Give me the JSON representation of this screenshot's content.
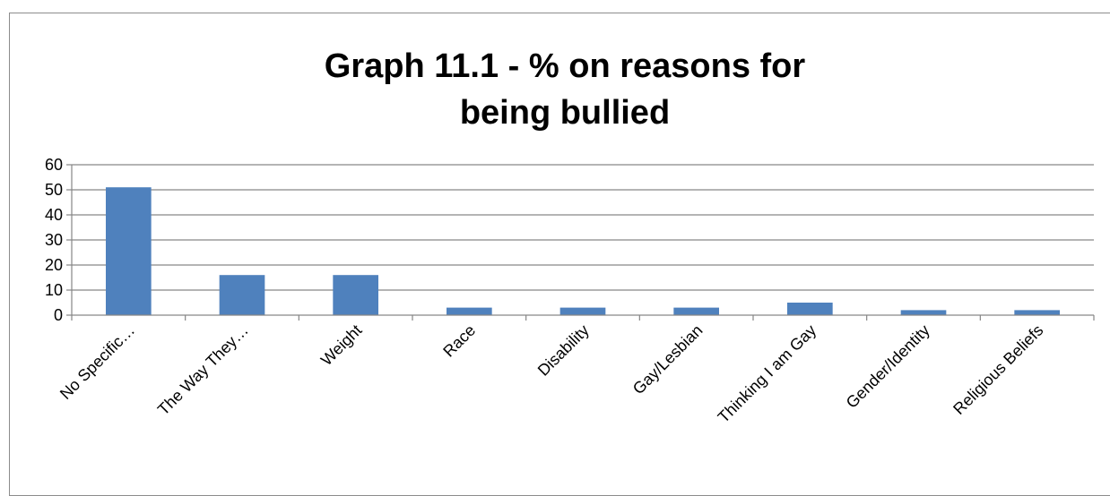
{
  "chart_data": {
    "type": "bar",
    "title_lines": [
      "Graph 11.1 - % on reasons for",
      "being bullied"
    ],
    "categories": [
      "No Specific…",
      "The Way They…",
      "Weight",
      "Race",
      "Disability",
      "Gay/Lesbian",
      "Thinking I am Gay",
      "Gender/Identity",
      "Religious Beliefs"
    ],
    "values": [
      51,
      16,
      16,
      3,
      3,
      3,
      5,
      2,
      2
    ],
    "ylim": [
      0,
      60
    ],
    "yticks": [
      0,
      10,
      20,
      30,
      40,
      50,
      60
    ],
    "grid": true,
    "legend": "none",
    "bar_color": "#4f81bd",
    "grid_color": "#868686"
  }
}
